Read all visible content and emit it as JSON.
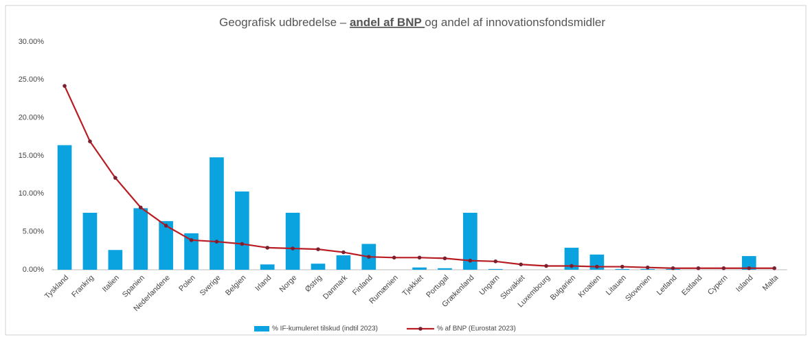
{
  "chart_data": {
    "type": "bar",
    "title": [
      "Geografisk udbredelse – ",
      "andel af BNP ",
      "og andel af innovationsfondsmidler"
    ],
    "categories": [
      "Tyskland",
      "Frankrig",
      "Italien",
      "Spanien",
      "Nederlandene",
      "Polen",
      "Sverige",
      "Belgien",
      "Irland",
      "Norge",
      "Østrig",
      "Danmark",
      "Finland",
      "Rumænien",
      "Tjekkiet",
      "Portugal",
      "Grækenland",
      "Ungarn",
      "Slovakiet",
      "Luxembourg",
      "Bulgarien",
      "Kroatien",
      "Litauen",
      "Slovenien",
      "Letland",
      "Estland",
      "Cypern",
      "Island",
      "Malta"
    ],
    "series": [
      {
        "name": "% IF-kumuleret tilskud (indtil 2023)",
        "type": "bar",
        "color": "#0aa3e0",
        "values": [
          16.4,
          7.5,
          2.6,
          8.1,
          6.4,
          4.8,
          14.8,
          10.3,
          0.7,
          7.5,
          0.8,
          1.9,
          3.4,
          0,
          0.3,
          0.2,
          7.5,
          0.1,
          0,
          0,
          2.9,
          2.0,
          0.1,
          0.1,
          0.1,
          0,
          0,
          1.8,
          0
        ]
      },
      {
        "name": "% af BNP (Eurostat 2023)",
        "type": "line",
        "color": "#b81c22",
        "marker_color": "#7a2030",
        "values": [
          24.2,
          16.9,
          12.1,
          8.2,
          5.8,
          3.9,
          3.7,
          3.4,
          2.9,
          2.8,
          2.7,
          2.3,
          1.7,
          1.6,
          1.6,
          1.5,
          1.2,
          1.1,
          0.7,
          0.5,
          0.5,
          0.4,
          0.4,
          0.3,
          0.2,
          0.2,
          0.2,
          0.2,
          0.2
        ]
      }
    ],
    "ylim": [
      0,
      30
    ],
    "yticks": [
      {
        "value": 0,
        "label": "0.00%"
      },
      {
        "value": 5,
        "label": "5.00%"
      },
      {
        "value": 10,
        "label": "10.00%"
      },
      {
        "value": 15,
        "label": "15.00%"
      },
      {
        "value": 20,
        "label": "20.00%"
      },
      {
        "value": 25,
        "label": "25.00%"
      },
      {
        "value": 30,
        "label": "30.00%"
      }
    ],
    "grid": false,
    "legend": "bottom"
  }
}
